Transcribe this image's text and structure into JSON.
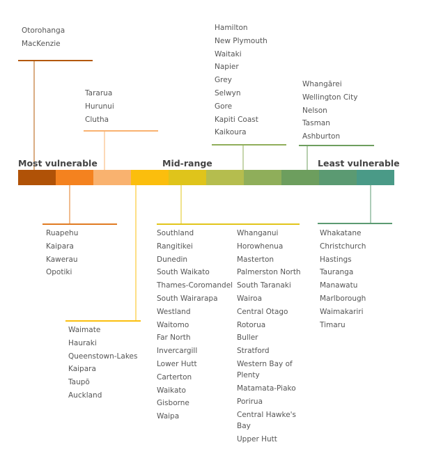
{
  "scale": {
    "labels": [
      "Most vulnerable",
      "Mid-range",
      "Least vulnerable"
    ]
  },
  "groups": [
    {
      "columns": [
        [
          "Otorohanga",
          "MacKenzie"
        ]
      ]
    },
    {
      "columns": [
        [
          "Tararua",
          "Hurunui",
          "Clutha"
        ]
      ]
    },
    {
      "columns": [
        [
          "Hamilton",
          "New Plymouth",
          "Waitaki",
          "Napier",
          "Grey",
          "Selwyn",
          "Gore",
          "Kapiti Coast",
          "Kaikoura"
        ]
      ]
    },
    {
      "columns": [
        [
          "Whangārei",
          "Wellington City",
          "Nelson",
          "Tasman",
          "Ashburton"
        ]
      ]
    },
    {
      "columns": [
        [
          "Ruapehu",
          "Kaipara",
          "Kawerau",
          "Opotiki"
        ]
      ]
    },
    {
      "columns": [
        [
          "Waimate",
          "Hauraki",
          "Queenstown-Lakes",
          "Kaipara",
          "Taupō",
          "Auckland"
        ]
      ]
    },
    {
      "columns": [
        [
          "Southland",
          "Rangitikei",
          "Dunedin",
          "South Waikato",
          "Thames-Coromandel",
          "South Wairarapa",
          "Westland",
          "Waitomo",
          "Far North",
          "Invercargill",
          "Lower Hutt",
          "Carterton",
          "Waikato",
          "Gisborne",
          "Waipa"
        ],
        [
          "Whanganui",
          "Horowhenua",
          "Masterton",
          "Palmerston North",
          "South Taranaki",
          "Wairoa",
          "Central Otago",
          "Rotorua",
          "Buller",
          "Stratford",
          "Western Bay of Plenty",
          "Matamata-Piako",
          "Porirua",
          "Central Hawke's Bay",
          "Upper Hutt"
        ]
      ]
    },
    {
      "columns": [
        [
          "Whakatane",
          "Christchurch",
          "Hastings",
          "Tauranga",
          "Manawatu",
          "Marlborough",
          "Waimakariri",
          "Timaru"
        ]
      ]
    }
  ]
}
